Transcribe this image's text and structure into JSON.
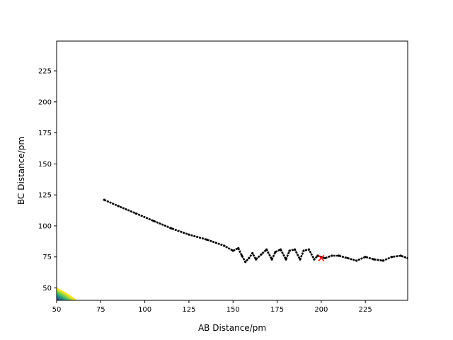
{
  "chart_data": {
    "type": "contour",
    "title": "",
    "xlabel": "AB Distance/pm",
    "ylabel": "BC Distance/pm",
    "xlim": [
      50,
      249
    ],
    "ylim": [
      40,
      249
    ],
    "xticks": [
      50,
      75,
      100,
      125,
      150,
      175,
      200,
      225
    ],
    "yticks": [
      50,
      75,
      100,
      125,
      150,
      175,
      200,
      225
    ],
    "grid": false,
    "colormap": [
      "#440154",
      "#3b528b",
      "#21918c",
      "#5ec962",
      "#fde725"
    ],
    "contour_levels": 60,
    "trajectory": {
      "color": "#000000",
      "points": [
        [
          77,
          121
        ],
        [
          85,
          116
        ],
        [
          95,
          110
        ],
        [
          105,
          104
        ],
        [
          115,
          98
        ],
        [
          125,
          93
        ],
        [
          135,
          89
        ],
        [
          145,
          84
        ],
        [
          150,
          80
        ],
        [
          153,
          82
        ],
        [
          155,
          76
        ],
        [
          157,
          71
        ],
        [
          159,
          74
        ],
        [
          161,
          78
        ],
        [
          163,
          73
        ],
        [
          166,
          77
        ],
        [
          169,
          81
        ],
        [
          172,
          73
        ],
        [
          174,
          79
        ],
        [
          177,
          81
        ],
        [
          180,
          73
        ],
        [
          182,
          80
        ],
        [
          185,
          81
        ],
        [
          188,
          73
        ],
        [
          190,
          80
        ],
        [
          193,
          81
        ],
        [
          196,
          73
        ],
        [
          198,
          76
        ],
        [
          202,
          74
        ],
        [
          206,
          76
        ],
        [
          210,
          76
        ],
        [
          215,
          74
        ],
        [
          220,
          72
        ],
        [
          225,
          75
        ],
        [
          230,
          73
        ],
        [
          235,
          72
        ],
        [
          240,
          75
        ],
        [
          245,
          76
        ],
        [
          249,
          74
        ]
      ]
    },
    "marker": {
      "x": 200,
      "y": 74,
      "symbol": "x",
      "color": "#ff0000"
    }
  }
}
